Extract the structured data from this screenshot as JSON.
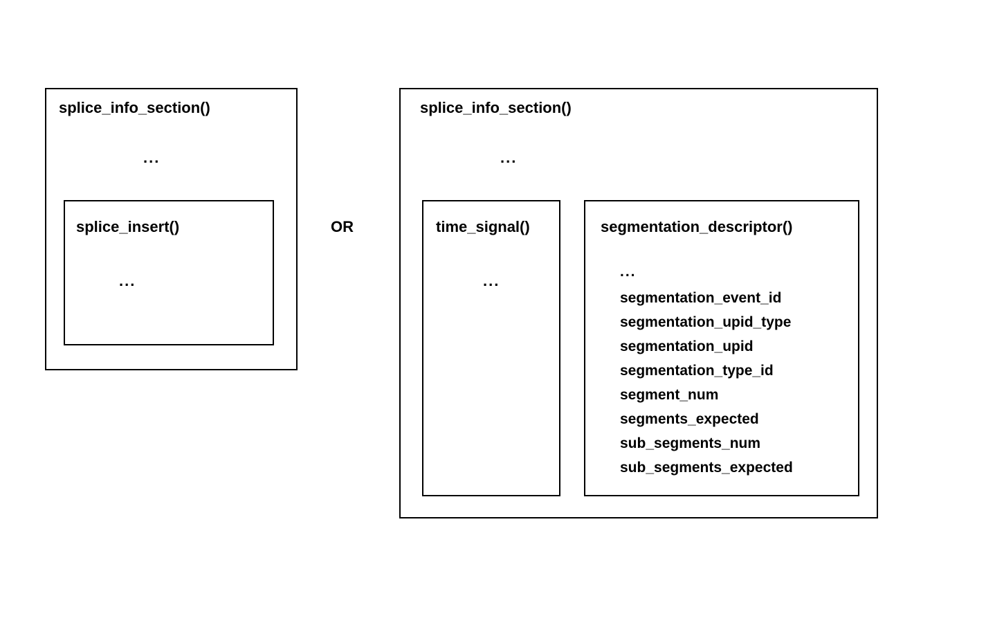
{
  "diagram": {
    "type": "flowchart",
    "background_color": "#ffffff",
    "border_color": "#000000",
    "text_color": "#000000",
    "font_weight": 700,
    "left_block": {
      "title": "splice_info_section()",
      "title_fontsize": 22,
      "ellipsis": "...",
      "inner": {
        "title": "splice_insert()",
        "title_fontsize": 22,
        "ellipsis": "..."
      }
    },
    "connector": {
      "label": "OR",
      "fontsize": 22
    },
    "right_block": {
      "title": "splice_info_section()",
      "title_fontsize": 22,
      "ellipsis": "...",
      "inner_left": {
        "title": "time_signal()",
        "title_fontsize": 22,
        "ellipsis": "..."
      },
      "inner_right": {
        "title": "segmentation_descriptor()",
        "title_fontsize": 22,
        "ellipsis": "...",
        "fields": [
          "segmentation_event_id",
          "segmentation_upid_type",
          "segmentation_upid",
          "segmentation_type_id",
          "segment_num",
          "segments_expected",
          "sub_segments_num",
          "sub_segments_expected"
        ],
        "field_fontsize": 21,
        "field_line_height": 35
      }
    }
  }
}
